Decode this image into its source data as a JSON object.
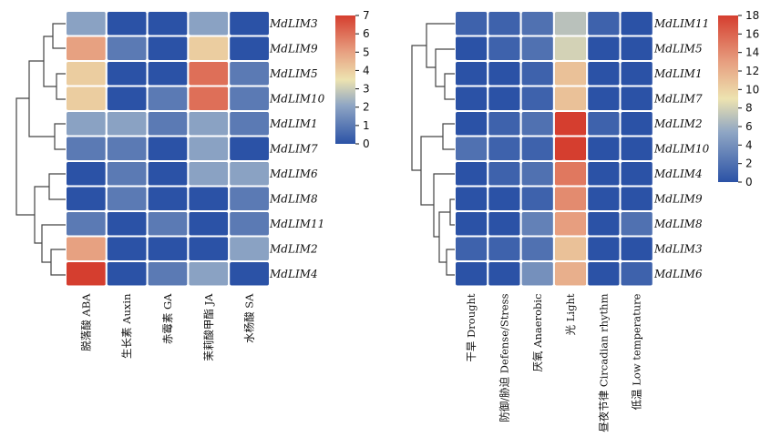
{
  "colors": {
    "low": "#2b52a6",
    "mid_low": "#8fa6c4",
    "mid": "#ede3b0",
    "high": "#d53e2f"
  },
  "chart_data": [
    {
      "type": "heatmap",
      "rows": [
        "MdLIM3",
        "MdLIM9",
        "MdLIM5",
        "MdLIM10",
        "MdLIM1",
        "MdLIM7",
        "MdLIM6",
        "MdLIM8",
        "MdLIM11",
        "MdLIM2",
        "MdLIM4"
      ],
      "columns": [
        "脱落酸 ABA",
        "生长素 Auxin",
        "赤霉素 GA",
        "茉莉酸甲酯 JA",
        "水杨酸 SA"
      ],
      "values": [
        [
          2,
          0,
          0,
          2,
          0
        ],
        [
          5,
          1,
          0,
          4,
          0
        ],
        [
          4,
          0,
          0,
          6,
          1
        ],
        [
          4,
          0,
          1,
          6,
          1
        ],
        [
          2,
          2,
          1,
          2,
          1
        ],
        [
          1,
          1,
          0,
          2,
          0
        ],
        [
          0,
          1,
          0,
          2,
          2
        ],
        [
          0,
          1,
          0,
          0,
          1
        ],
        [
          1,
          0,
          1,
          0,
          1
        ],
        [
          5,
          0,
          0,
          0,
          2
        ],
        [
          7,
          0,
          1,
          2,
          0
        ]
      ],
      "scale": {
        "min": 0,
        "max": 7,
        "ticks": [
          "0",
          "1",
          "2",
          "3",
          "4",
          "5",
          "6",
          "7"
        ]
      }
    },
    {
      "type": "heatmap",
      "rows": [
        "MdLIM11",
        "MdLIM5",
        "MdLIM1",
        "MdLIM7",
        "MdLIM2",
        "MdLIM10",
        "MdLIM4",
        "MdLIM9",
        "MdLIM8",
        "MdLIM3",
        "MdLIM6"
      ],
      "columns": [
        "干旱 Drought",
        "防御/胁迫 Defense/Stress",
        "厌氧 Anaerobic",
        "光 Light",
        "昼夜节律 Circadian rhythm",
        "低温 Low temperature"
      ],
      "values": [
        [
          1,
          1,
          2,
          7,
          1,
          0
        ],
        [
          0,
          1,
          2,
          8,
          0,
          0
        ],
        [
          0,
          0,
          1,
          11,
          0,
          0
        ],
        [
          0,
          0,
          1,
          11,
          0,
          0
        ],
        [
          0,
          1,
          2,
          18,
          1,
          0
        ],
        [
          2,
          1,
          1,
          18,
          0,
          0
        ],
        [
          0,
          1,
          2,
          15,
          0,
          0
        ],
        [
          0,
          0,
          1,
          14,
          0,
          0
        ],
        [
          0,
          0,
          3,
          13,
          0,
          2
        ],
        [
          1,
          1,
          2,
          11,
          0,
          0
        ],
        [
          0,
          0,
          4,
          12,
          0,
          1
        ]
      ],
      "scale": {
        "min": 0,
        "max": 18,
        "ticks": [
          "0",
          "2",
          "4",
          "6",
          "8",
          "10",
          "12",
          "14",
          "16",
          "18"
        ]
      }
    }
  ]
}
